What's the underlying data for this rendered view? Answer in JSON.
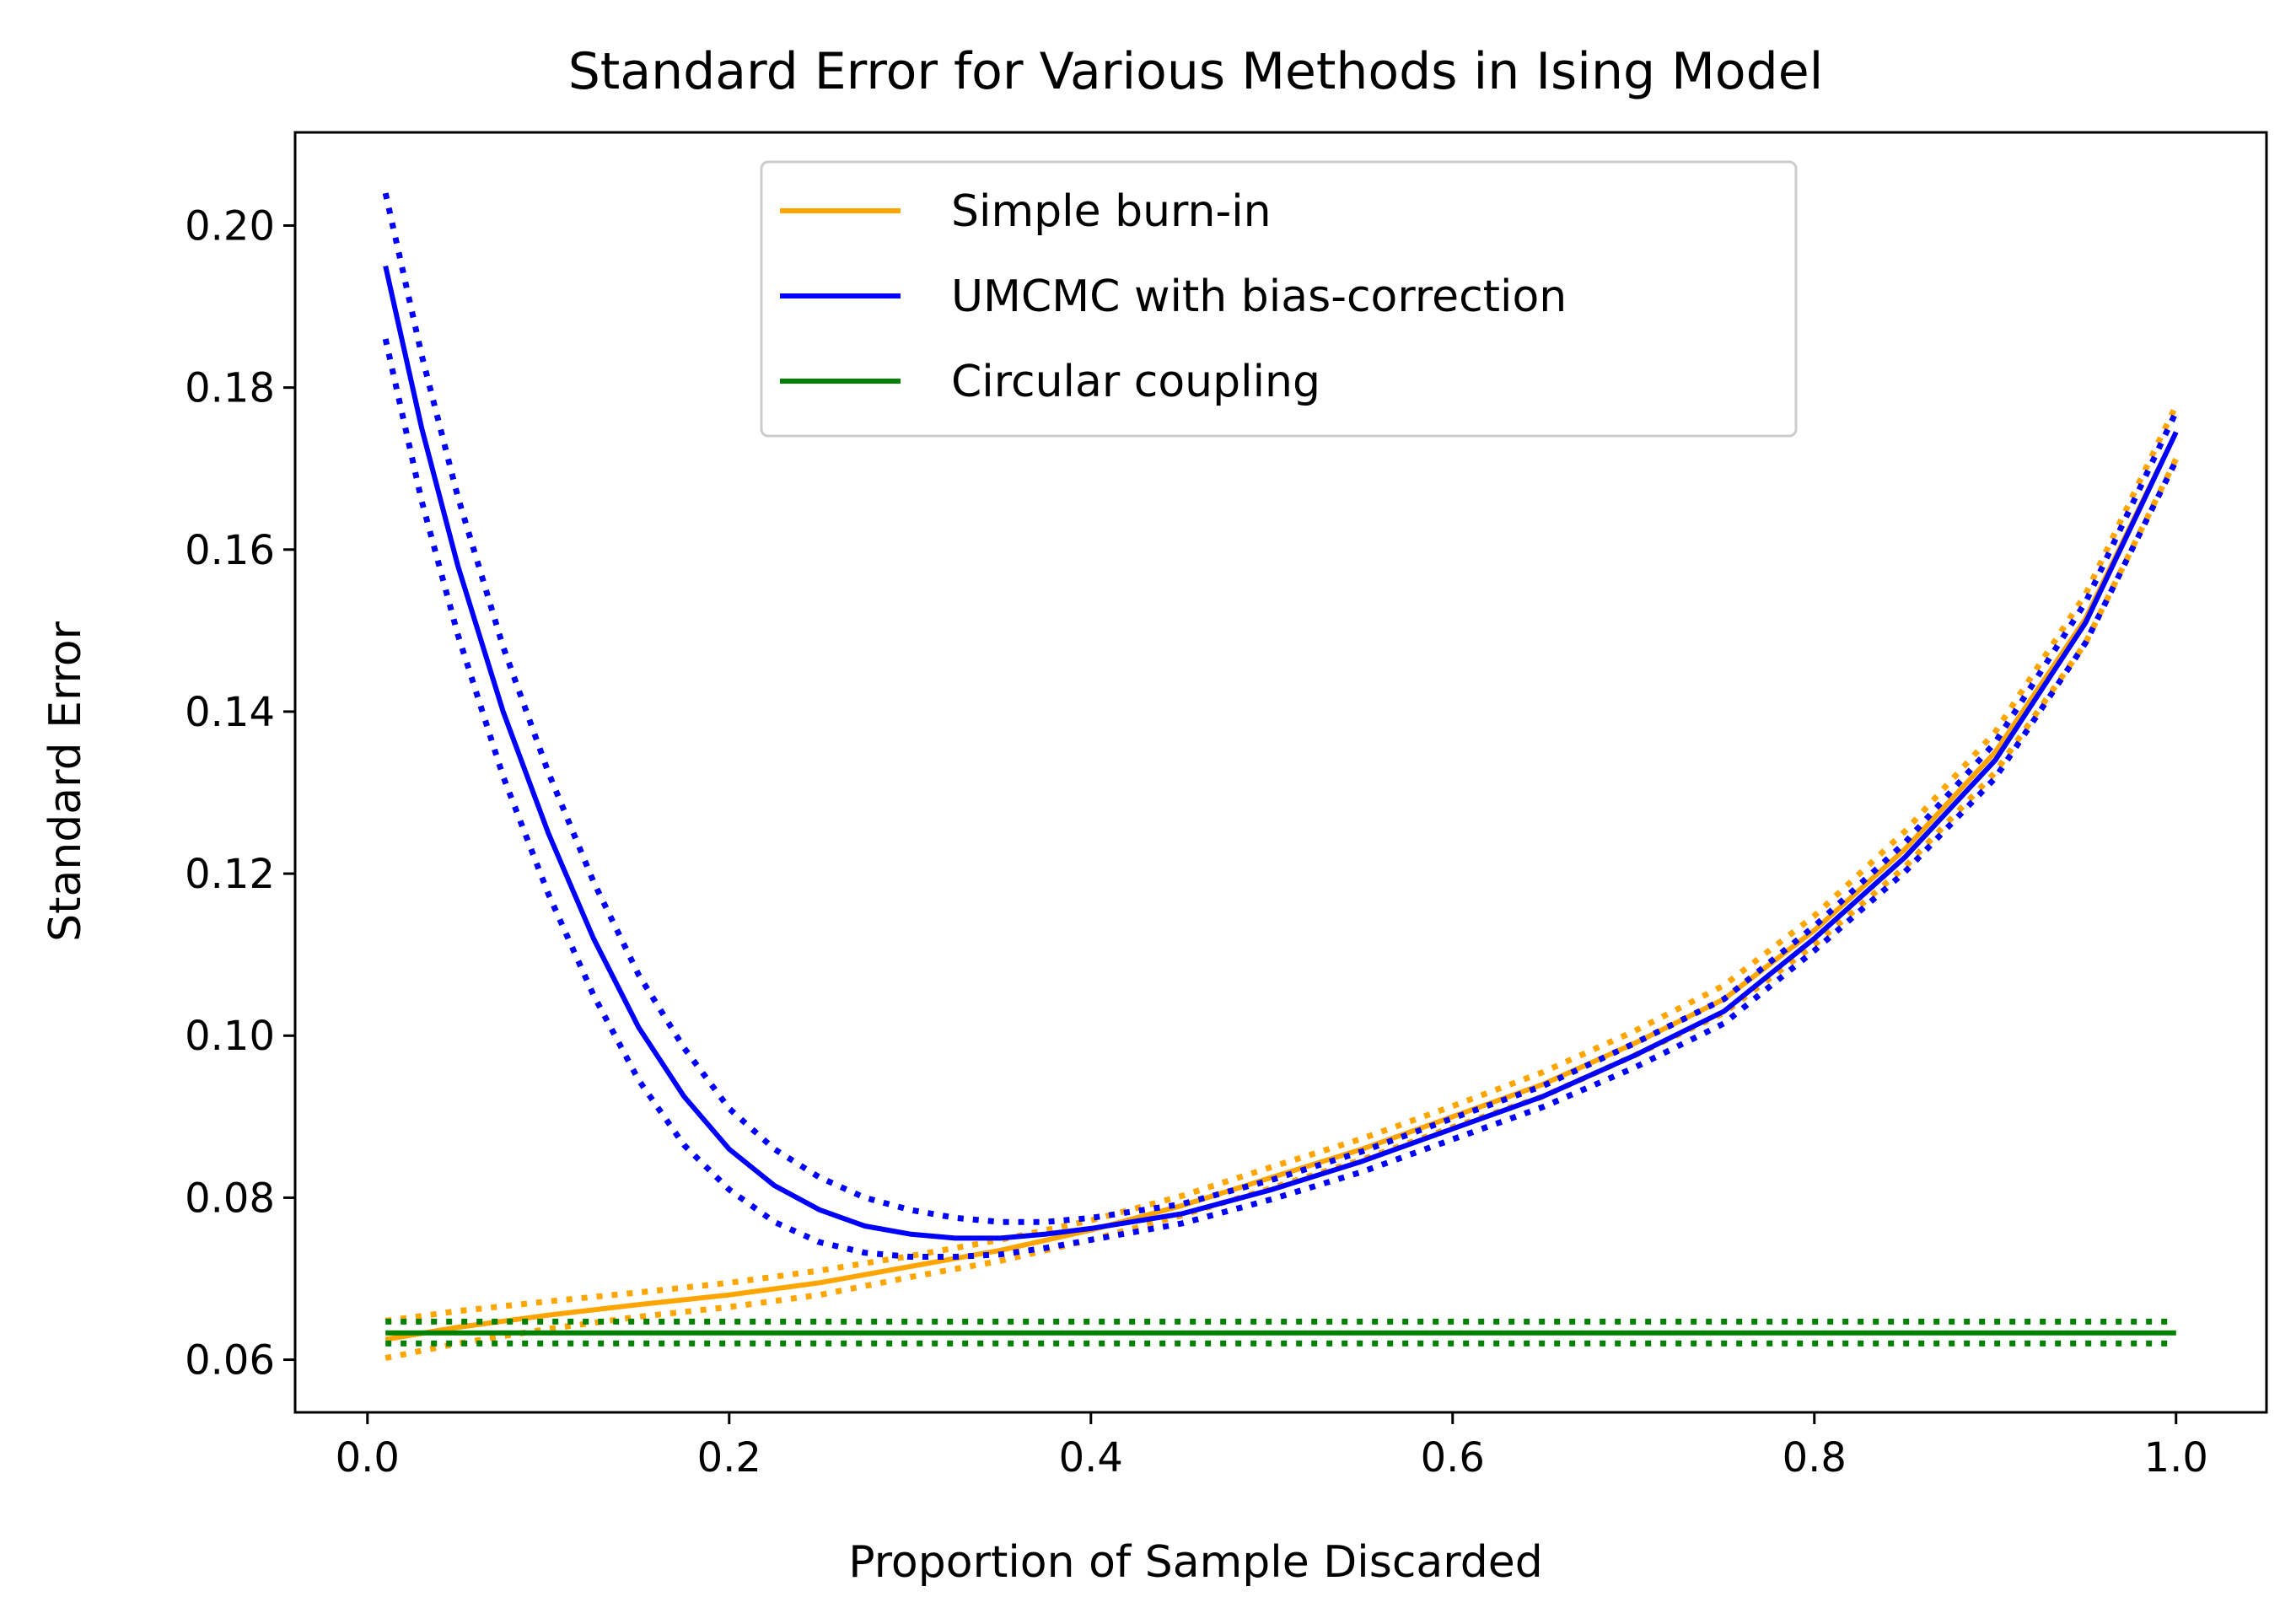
{
  "chart_data": {
    "type": "line",
    "title": "Standard Error for Various Methods in Ising Model",
    "xlabel": "Proportion of Sample Discarded",
    "ylabel": "Standard Error",
    "xlim": [
      -0.04,
      1.05
    ],
    "ylim": [
      0.0535,
      0.2115
    ],
    "x_ticks": [
      0.0,
      0.2,
      0.4,
      0.6,
      0.8,
      1.0
    ],
    "x_tick_labels": [
      "0.0",
      "0.2",
      "0.4",
      "0.6",
      "0.8",
      "1.0"
    ],
    "y_ticks": [
      0.06,
      0.08,
      0.1,
      0.12,
      0.14,
      0.16,
      0.18,
      0.2
    ],
    "y_tick_labels": [
      "0.06",
      "0.08",
      "0.10",
      "0.12",
      "0.14",
      "0.16",
      "0.18",
      "0.20"
    ],
    "grid": false,
    "legend_position": "upper-center",
    "legend": [
      "Simple burn-in",
      "UMCMC with bias-correction",
      "Circular coupling"
    ],
    "series": [
      {
        "name": "Simple burn-in",
        "color": "#ffa500",
        "x": [
          0.01,
          0.05,
          0.1,
          0.15,
          0.2,
          0.25,
          0.3,
          0.35,
          0.4,
          0.45,
          0.5,
          0.55,
          0.6,
          0.65,
          0.7,
          0.75,
          0.8,
          0.85,
          0.9,
          0.95,
          1.0
        ],
        "y": [
          0.0625,
          0.064,
          0.0655,
          0.0668,
          0.068,
          0.0695,
          0.0715,
          0.0735,
          0.076,
          0.079,
          0.0825,
          0.086,
          0.09,
          0.094,
          0.099,
          0.1045,
          0.113,
          0.123,
          0.135,
          0.1515,
          0.1745
        ],
        "upper": [
          0.0648,
          0.066,
          0.0672,
          0.0683,
          0.0695,
          0.071,
          0.0728,
          0.0748,
          0.0772,
          0.0802,
          0.0838,
          0.0873,
          0.0913,
          0.0955,
          0.1005,
          0.1062,
          0.1148,
          0.1252,
          0.1375,
          0.1545,
          0.1778
        ],
        "lower": [
          0.0602,
          0.062,
          0.0638,
          0.0653,
          0.0665,
          0.068,
          0.0702,
          0.0722,
          0.0748,
          0.0778,
          0.0812,
          0.0847,
          0.0887,
          0.0925,
          0.0975,
          0.1028,
          0.1112,
          0.1208,
          0.1325,
          0.1485,
          0.1712
        ]
      },
      {
        "name": "UMCMC with bias-correction",
        "color": "#0000ff",
        "x": [
          0.01,
          0.03,
          0.05,
          0.075,
          0.1,
          0.125,
          0.15,
          0.175,
          0.2,
          0.225,
          0.25,
          0.275,
          0.3,
          0.325,
          0.35,
          0.375,
          0.4,
          0.45,
          0.5,
          0.55,
          0.6,
          0.65,
          0.7,
          0.75,
          0.8,
          0.85,
          0.9,
          0.95,
          1.0
        ],
        "y": [
          0.195,
          0.175,
          0.158,
          0.14,
          0.125,
          0.112,
          0.101,
          0.0925,
          0.086,
          0.0815,
          0.0785,
          0.0765,
          0.0755,
          0.075,
          0.075,
          0.0755,
          0.0762,
          0.078,
          0.081,
          0.0845,
          0.0885,
          0.0925,
          0.0975,
          0.103,
          0.112,
          0.122,
          0.134,
          0.151,
          0.1745
        ],
        "upper": [
          0.204,
          0.184,
          0.1665,
          0.148,
          0.1325,
          0.119,
          0.1075,
          0.0985,
          0.091,
          0.086,
          0.0825,
          0.08,
          0.0785,
          0.0775,
          0.077,
          0.077,
          0.0775,
          0.0792,
          0.0822,
          0.0857,
          0.0898,
          0.0938,
          0.099,
          0.1045,
          0.1135,
          0.1238,
          0.1362,
          0.1535,
          0.177
        ],
        "lower": [
          0.186,
          0.166,
          0.1495,
          0.132,
          0.1175,
          0.105,
          0.0945,
          0.0865,
          0.081,
          0.077,
          0.0745,
          0.0732,
          0.0727,
          0.0727,
          0.073,
          0.0738,
          0.0748,
          0.0768,
          0.0798,
          0.0832,
          0.0872,
          0.0912,
          0.096,
          0.1015,
          0.1105,
          0.1202,
          0.1318,
          0.1485,
          0.171
        ]
      },
      {
        "name": "Circular coupling",
        "color": "#008000",
        "x": [
          0.01,
          1.0
        ],
        "y": [
          0.0633,
          0.0633
        ],
        "upper": [
          0.0647,
          0.0647
        ],
        "lower": [
          0.062,
          0.062
        ]
      }
    ]
  }
}
